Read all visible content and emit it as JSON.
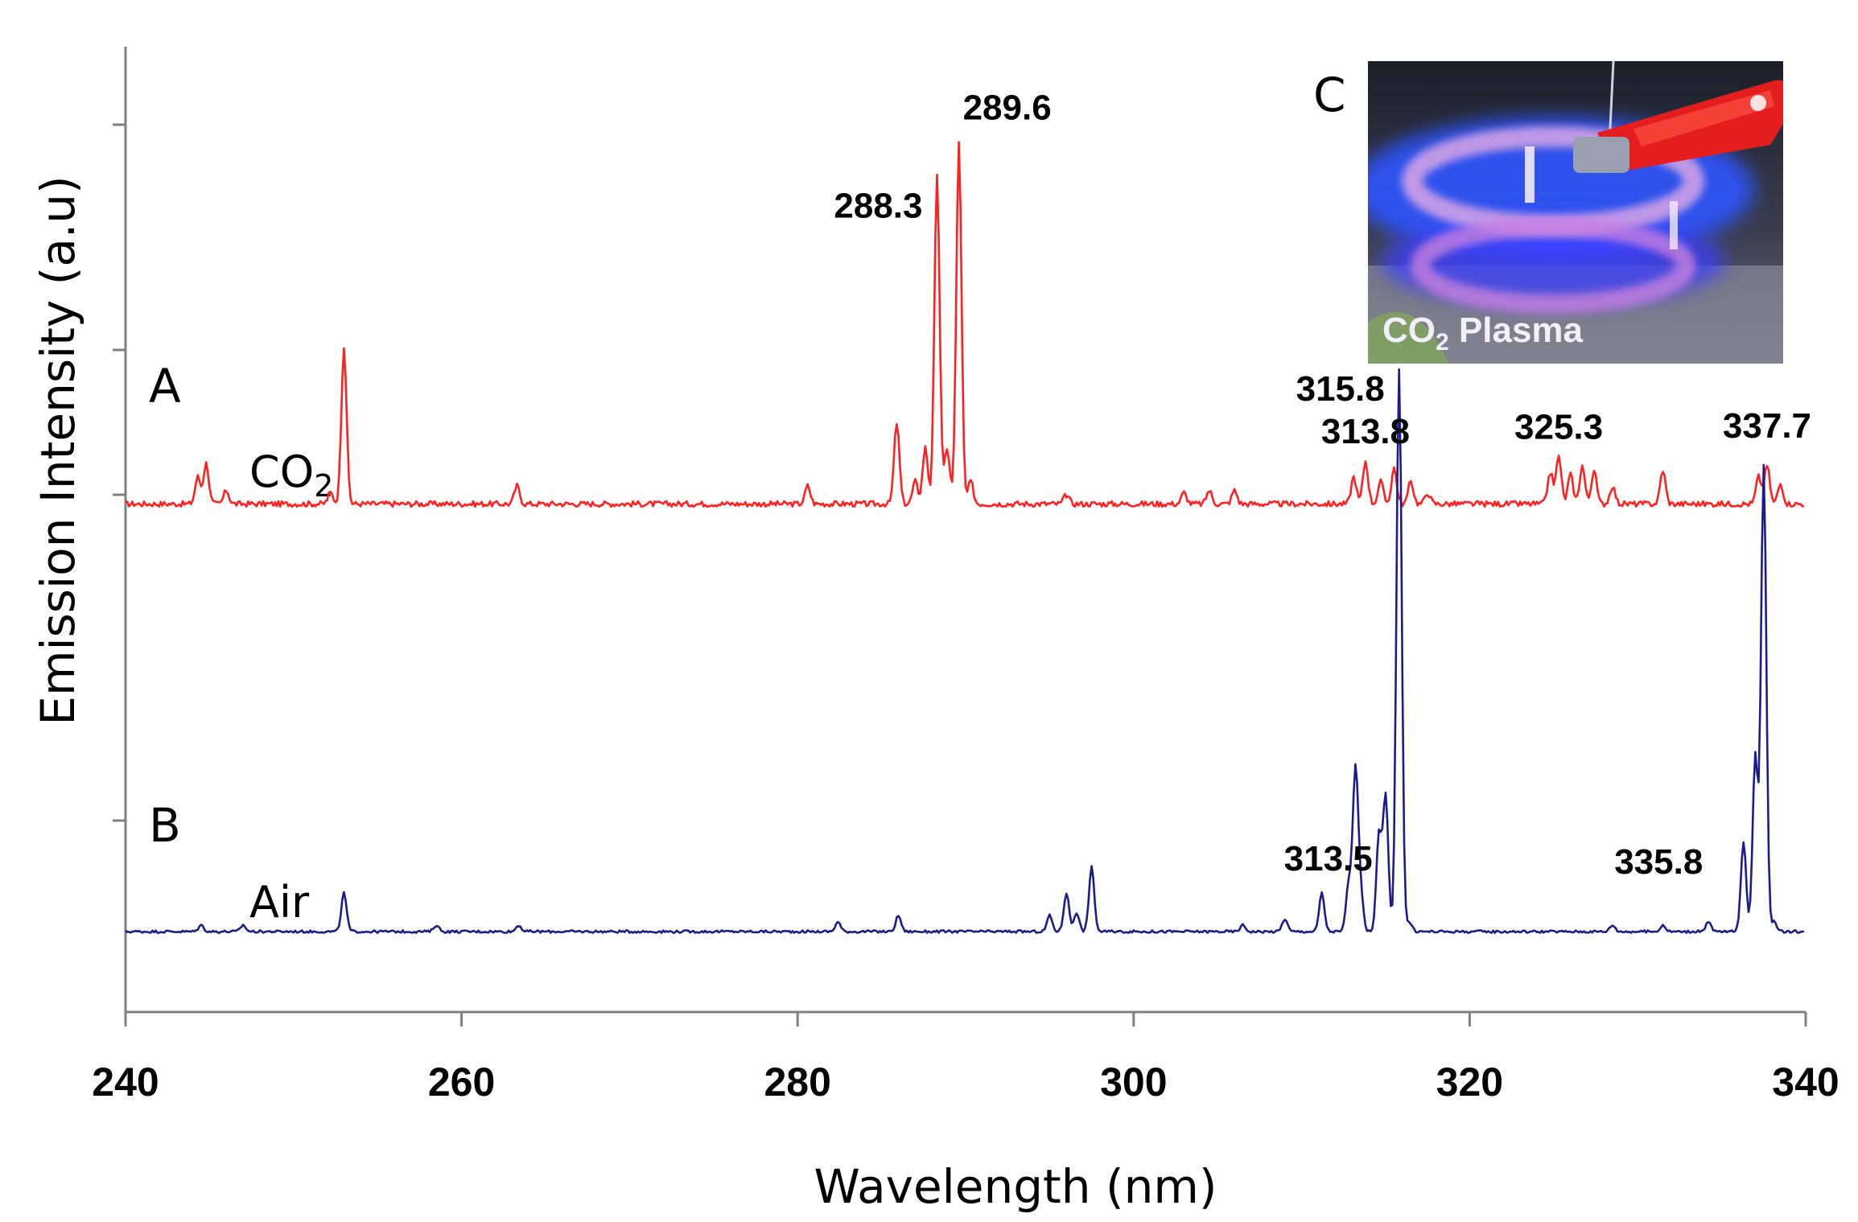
{
  "chart_data": {
    "type": "line",
    "xlabel": "Wavelength (nm)",
    "ylabel": "Emission Intensity (a.u)",
    "xlim": [
      240,
      340
    ],
    "xticks": [
      "240",
      "260",
      "280",
      "300",
      "320",
      "340"
    ],
    "colors": {
      "A": "#ff2020",
      "B": "#1c1c8c"
    },
    "panels": [
      {
        "letter": "A",
        "label": "CO",
        "label_sub": "2"
      },
      {
        "letter": "B",
        "label": "Air"
      }
    ],
    "series": [
      {
        "panel": "A",
        "color": "#ff2020",
        "baseline": 0.02,
        "points": [
          [
            244.3,
            0.12
          ],
          [
            244.8,
            0.18
          ],
          [
            246.0,
            0.06
          ],
          [
            252.2,
            0.05
          ],
          [
            253.0,
            0.7
          ],
          [
            263.3,
            0.08
          ],
          [
            280.6,
            0.08
          ],
          [
            285.9,
            0.36
          ],
          [
            287.0,
            0.1
          ],
          [
            287.6,
            0.25
          ],
          [
            288.3,
            1.45
          ],
          [
            288.9,
            0.25
          ],
          [
            289.6,
            1.6
          ],
          [
            290.3,
            0.1
          ],
          [
            296.0,
            0.04
          ],
          [
            303.0,
            0.05
          ],
          [
            304.5,
            0.06
          ],
          [
            306.0,
            0.06
          ],
          [
            313.1,
            0.12
          ],
          [
            313.8,
            0.19
          ],
          [
            314.7,
            0.1
          ],
          [
            315.5,
            0.16
          ],
          [
            316.5,
            0.1
          ],
          [
            317.5,
            0.05
          ],
          [
            324.8,
            0.14
          ],
          [
            325.3,
            0.21
          ],
          [
            326.0,
            0.13
          ],
          [
            326.7,
            0.17
          ],
          [
            327.4,
            0.15
          ],
          [
            328.5,
            0.08
          ],
          [
            331.5,
            0.15
          ],
          [
            337.2,
            0.12
          ],
          [
            337.7,
            0.17
          ],
          [
            338.5,
            0.09
          ]
        ],
        "peak_labels": [
          {
            "x": 288.3,
            "text": "288.3"
          },
          {
            "x": 289.6,
            "text": "289.6"
          },
          {
            "x": 313.8,
            "text": "313.8"
          },
          {
            "x": 325.3,
            "text": "325.3"
          },
          {
            "x": 337.7,
            "text": "337.7"
          }
        ]
      },
      {
        "panel": "B",
        "color": "#1c1c8c",
        "baseline": 0.0,
        "points": [
          [
            244.5,
            0.02
          ],
          [
            247.0,
            0.02
          ],
          [
            253.0,
            0.12
          ],
          [
            258.5,
            0.02
          ],
          [
            263.4,
            0.02
          ],
          [
            282.4,
            0.03
          ],
          [
            286.0,
            0.05
          ],
          [
            295.0,
            0.05
          ],
          [
            296.0,
            0.12
          ],
          [
            296.6,
            0.06
          ],
          [
            297.5,
            0.2
          ],
          [
            306.5,
            0.02
          ],
          [
            309.0,
            0.04
          ],
          [
            311.2,
            0.12
          ],
          [
            312.8,
            0.15
          ],
          [
            313.2,
            0.5
          ],
          [
            313.5,
            0.12
          ],
          [
            314.6,
            0.3
          ],
          [
            315.0,
            0.42
          ],
          [
            315.8,
            1.75
          ],
          [
            316.4,
            0.03
          ],
          [
            328.5,
            0.02
          ],
          [
            331.5,
            0.02
          ],
          [
            334.2,
            0.03
          ],
          [
            336.3,
            0.28
          ],
          [
            337.0,
            0.55
          ],
          [
            337.5,
            1.45
          ],
          [
            338.1,
            0.03
          ]
        ],
        "peak_labels": [
          {
            "x": 313.5,
            "text": "313.5"
          },
          {
            "x": 315.8,
            "text": "315.8"
          },
          {
            "x": 335.8,
            "text": "335.8"
          }
        ]
      }
    ]
  },
  "inset": {
    "letter": "C",
    "caption": "CO",
    "caption_sub": "2",
    "caption_rest": " Plasma",
    "colors": {
      "background": "#2c2f3a",
      "glow": "#2f54ff",
      "clip": "#e41d1d",
      "ring": "#d9a6e6"
    }
  }
}
